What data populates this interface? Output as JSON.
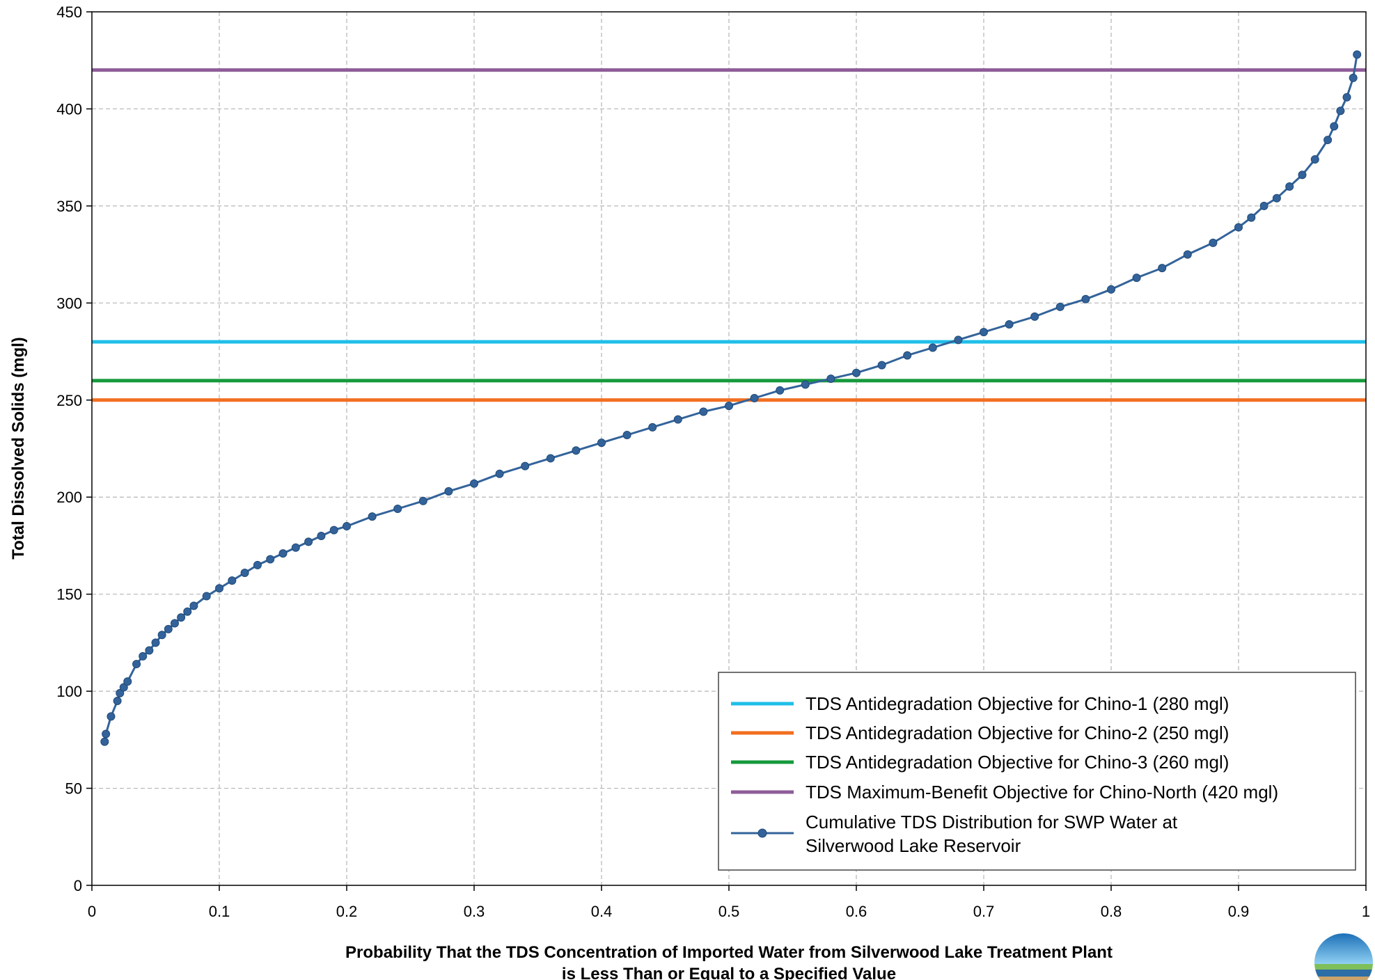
{
  "chart_data": {
    "type": "line",
    "xlabel_lines": [
      "Probability That the TDS Concentration of Imported Water from Silverwood Lake Treatment Plant",
      "is Less Than or Equal to a Specified Value"
    ],
    "ylabel": "Total Dissolved Solids (mgl)",
    "xlim": [
      0,
      1
    ],
    "ylim": [
      0,
      450
    ],
    "x_ticks": [
      0,
      0.1,
      0.2,
      0.3,
      0.4,
      0.5,
      0.6,
      0.7,
      0.8,
      0.9,
      1
    ],
    "y_ticks": [
      0,
      50,
      100,
      150,
      200,
      250,
      300,
      350,
      400,
      450
    ],
    "grid": true,
    "legend_position": "bottom-right",
    "reference_lines": [
      {
        "name": "TDS Antidegradation Objective for Chino-1 (280 mgl)",
        "value": 280,
        "color": "#1fbfe8"
      },
      {
        "name": "TDS Antidegradation Objective for Chino-2 (250 mgl)",
        "value": 250,
        "color": "#f26f21"
      },
      {
        "name": "TDS Antidegradation Objective for Chino-3 (260 mgl)",
        "value": 260,
        "color": "#159a3c"
      },
      {
        "name": "TDS Maximum-Benefit Objective for Chino-North (420 mgl)",
        "value": 420,
        "color": "#8e5d98"
      }
    ],
    "series": [
      {
        "name_lines": [
          "Cumulative TDS Distribution for SWP Water at",
          "Silverwood Lake Reservoir"
        ],
        "color": "#33639a",
        "x": [
          0.01,
          0.011,
          0.015,
          0.02,
          0.022,
          0.025,
          0.028,
          0.035,
          0.04,
          0.045,
          0.05,
          0.055,
          0.06,
          0.065,
          0.07,
          0.075,
          0.08,
          0.09,
          0.1,
          0.11,
          0.12,
          0.13,
          0.14,
          0.15,
          0.16,
          0.17,
          0.18,
          0.19,
          0.2,
          0.22,
          0.24,
          0.26,
          0.28,
          0.3,
          0.32,
          0.34,
          0.36,
          0.38,
          0.4,
          0.42,
          0.44,
          0.46,
          0.48,
          0.5,
          0.52,
          0.54,
          0.56,
          0.58,
          0.6,
          0.62,
          0.64,
          0.66,
          0.68,
          0.7,
          0.72,
          0.74,
          0.76,
          0.78,
          0.8,
          0.82,
          0.84,
          0.86,
          0.88,
          0.9,
          0.91,
          0.92,
          0.93,
          0.94,
          0.95,
          0.96,
          0.97,
          0.975,
          0.98,
          0.985,
          0.99,
          0.993
        ],
        "y": [
          74,
          78,
          87,
          95,
          99,
          102,
          105,
          114,
          118,
          121,
          125,
          129,
          132,
          135,
          138,
          141,
          144,
          149,
          153,
          157,
          161,
          165,
          168,
          171,
          174,
          177,
          180,
          183,
          185,
          190,
          194,
          198,
          203,
          207,
          212,
          216,
          220,
          224,
          228,
          232,
          236,
          240,
          244,
          247,
          251,
          255,
          258,
          261,
          264,
          268,
          273,
          277,
          281,
          285,
          289,
          293,
          298,
          302,
          307,
          313,
          318,
          325,
          331,
          339,
          344,
          350,
          354,
          360,
          366,
          374,
          384,
          391,
          399,
          406,
          416,
          428
        ]
      }
    ]
  }
}
